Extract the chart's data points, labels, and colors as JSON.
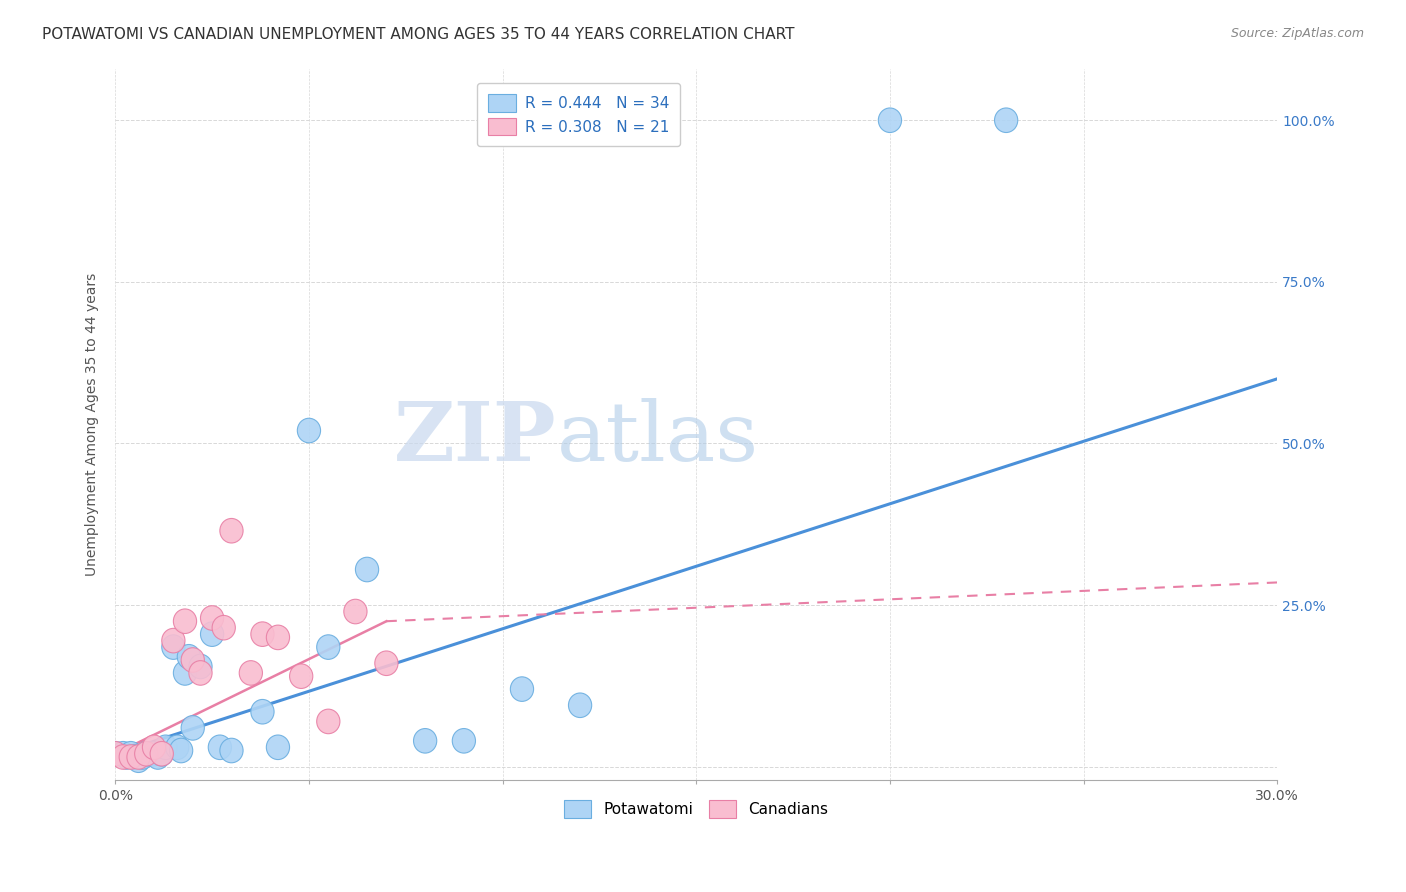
{
  "title": "POTAWATOMI VS CANADIAN UNEMPLOYMENT AMONG AGES 35 TO 44 YEARS CORRELATION CHART",
  "source": "Source: ZipAtlas.com",
  "ylabel": "Unemployment Among Ages 35 to 44 years",
  "xlim": [
    0.0,
    0.3
  ],
  "ylim": [
    -0.02,
    1.08
  ],
  "ytick_positions": [
    0.0,
    0.25,
    0.5,
    0.75,
    1.0
  ],
  "ytick_labels_right": [
    "",
    "25.0%",
    "50.0%",
    "75.0%",
    "100.0%"
  ],
  "legend_entries": [
    {
      "label": "R = 0.444   N = 34",
      "color_patch": "#aed4f5",
      "color_text": "#2c6fbd"
    },
    {
      "label": "R = 0.308   N = 21",
      "color_patch": "#f9bdd0",
      "color_text": "#2c6fbd"
    }
  ],
  "color_blue_fill": "#aed4f5",
  "color_blue_edge": "#6aaee0",
  "color_pink_fill": "#f9bdd0",
  "color_pink_edge": "#e87fa5",
  "color_line_blue": "#4a90d9",
  "color_line_pink": "#e87fa5",
  "watermark_zip": "ZIP",
  "watermark_atlas": "atlas",
  "potawatomi_x": [
    0.0,
    0.002,
    0.003,
    0.004,
    0.005,
    0.006,
    0.007,
    0.008,
    0.009,
    0.01,
    0.011,
    0.012,
    0.013,
    0.015,
    0.016,
    0.017,
    0.018,
    0.019,
    0.02,
    0.022,
    0.025,
    0.027,
    0.03,
    0.038,
    0.042,
    0.05,
    0.055,
    0.065,
    0.09,
    0.105,
    0.12,
    0.08,
    0.2,
    0.23
  ],
  "potawatomi_y": [
    0.02,
    0.02,
    0.015,
    0.02,
    0.015,
    0.01,
    0.015,
    0.02,
    0.02,
    0.02,
    0.015,
    0.02,
    0.03,
    0.185,
    0.03,
    0.025,
    0.145,
    0.17,
    0.06,
    0.155,
    0.205,
    0.03,
    0.025,
    0.085,
    0.03,
    0.52,
    0.185,
    0.305,
    0.04,
    0.12,
    0.095,
    0.04,
    1.0,
    1.0
  ],
  "canadians_x": [
    0.0,
    0.002,
    0.004,
    0.006,
    0.008,
    0.01,
    0.012,
    0.015,
    0.018,
    0.02,
    0.022,
    0.025,
    0.028,
    0.03,
    0.035,
    0.038,
    0.042,
    0.048,
    0.055,
    0.062,
    0.07
  ],
  "canadians_y": [
    0.02,
    0.015,
    0.015,
    0.015,
    0.02,
    0.03,
    0.02,
    0.195,
    0.225,
    0.165,
    0.145,
    0.23,
    0.215,
    0.365,
    0.145,
    0.205,
    0.2,
    0.14,
    0.07,
    0.24,
    0.16
  ],
  "trend_blue_x0": 0.0,
  "trend_blue_y0": 0.02,
  "trend_blue_x1": 0.3,
  "trend_blue_y1": 0.6,
  "trend_pink_solid_x0": 0.0,
  "trend_pink_solid_y0": 0.02,
  "trend_pink_solid_x1": 0.07,
  "trend_pink_solid_y1": 0.225,
  "trend_pink_dash_x0": 0.07,
  "trend_pink_dash_y0": 0.225,
  "trend_pink_dash_x1": 0.3,
  "trend_pink_dash_y1": 0.285,
  "grid_color": "#d8d8d8",
  "bg_color": "#ffffff",
  "title_fontsize": 11,
  "ylabel_fontsize": 10,
  "tick_fontsize": 10,
  "legend_fontsize": 11,
  "source_fontsize": 9
}
